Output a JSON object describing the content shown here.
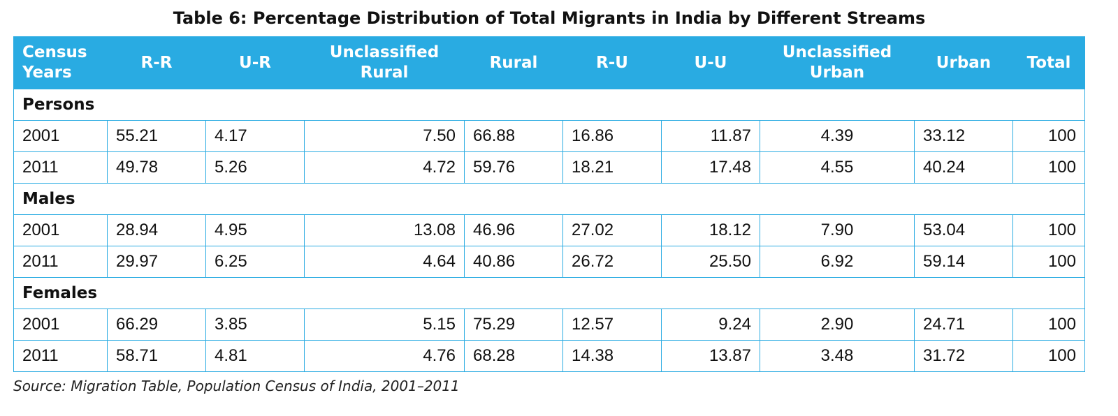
{
  "title": "Table 6: Percentage Distribution of Total Migrants in India by Different Streams",
  "header_color": "#29abe2",
  "columns": [
    "Census Years",
    "R-R",
    "U-R",
    "Unclassified Rural",
    "Rural",
    "R-U",
    "U-U",
    "Unclassified Urban",
    "Urban",
    "Total"
  ],
  "groups": [
    {
      "label": "Persons",
      "rows": [
        [
          "2001",
          "55.21",
          "4.17",
          "7.50",
          "66.88",
          "16.86",
          "11.87",
          "4.39",
          "33.12",
          "100"
        ],
        [
          "2011",
          "49.78",
          "5.26",
          "4.72",
          "59.76",
          "18.21",
          "17.48",
          "4.55",
          "40.24",
          "100"
        ]
      ]
    },
    {
      "label": "Males",
      "rows": [
        [
          "2001",
          "28.94",
          "4.95",
          "13.08",
          "46.96",
          "27.02",
          "18.12",
          "7.90",
          "53.04",
          "100"
        ],
        [
          "2011",
          "29.97",
          "6.25",
          "4.64",
          "40.86",
          "26.72",
          "25.50",
          "6.92",
          "59.14",
          "100"
        ]
      ]
    },
    {
      "label": "Females",
      "rows": [
        [
          "2001",
          "66.29",
          "3.85",
          "5.15",
          "75.29",
          "12.57",
          "9.24",
          "2.90",
          "24.71",
          "100"
        ],
        [
          "2011",
          "58.71",
          "4.81",
          "4.76",
          "68.28",
          "14.38",
          "13.87",
          "3.48",
          "31.72",
          "100"
        ]
      ]
    }
  ],
  "source": "Source: Migration Table, Population Census of India, 2001–2011"
}
